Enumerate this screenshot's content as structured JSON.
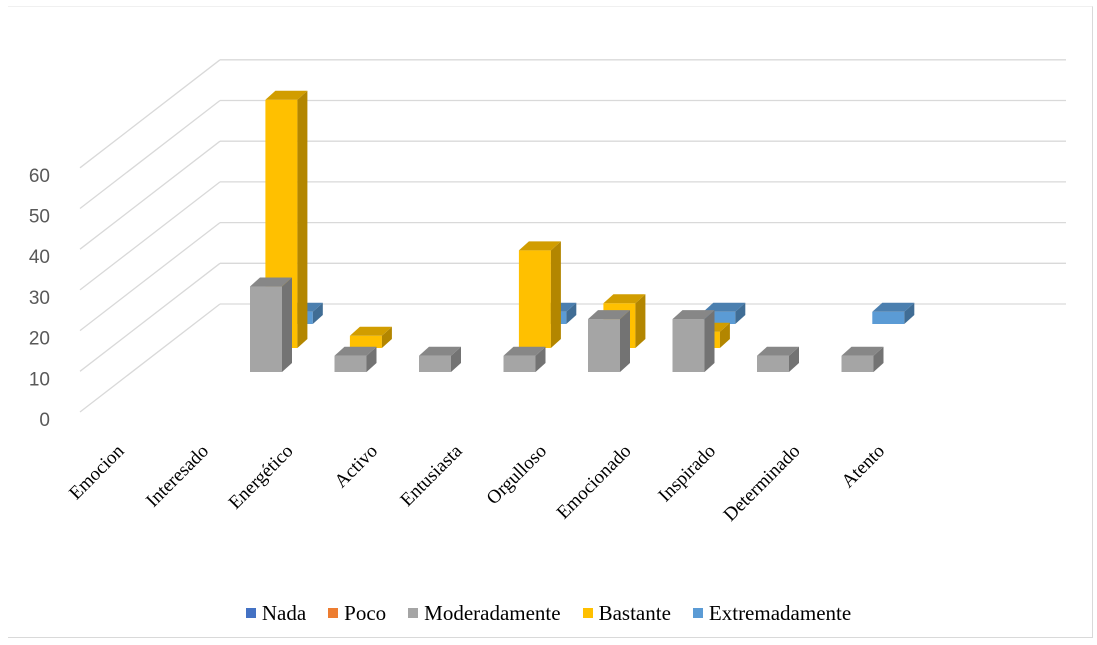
{
  "chart_data": {
    "type": "bar",
    "title": "",
    "xlabel": "",
    "ylabel": "",
    "y_ticks": [
      "0",
      "10",
      "20",
      "30",
      "40",
      "50",
      "60"
    ],
    "ylim": [
      0,
      60
    ],
    "categories": [
      "Emocion",
      "Interesado",
      "Energético",
      "Activo",
      "Entusiasta",
      "Orgulloso",
      "Emocionado",
      "Inspirado",
      "Determinado",
      "Atento"
    ],
    "series": [
      {
        "name": "Nada",
        "color": "#4472C4",
        "values": [
          null,
          null,
          null,
          null,
          null,
          null,
          null,
          null,
          null,
          null
        ]
      },
      {
        "name": "Poco",
        "color": "#ED7D31",
        "values": [
          null,
          null,
          null,
          null,
          null,
          null,
          null,
          null,
          null,
          null
        ]
      },
      {
        "name": "Moderadamente",
        "color": "#A5A5A5",
        "values": [
          null,
          null,
          21,
          4,
          4,
          4,
          13,
          13,
          4,
          4
        ]
      },
      {
        "name": "Bastante",
        "color": "#FFC000",
        "values": [
          null,
          null,
          61,
          3,
          null,
          24,
          11,
          4,
          null,
          null
        ]
      },
      {
        "name": "Extremadamente",
        "color": "#5B9BD5",
        "values": [
          null,
          null,
          3,
          null,
          null,
          3,
          null,
          3,
          null,
          3
        ]
      }
    ],
    "grid": true,
    "legend_position": "bottom",
    "style": "3d-column"
  }
}
